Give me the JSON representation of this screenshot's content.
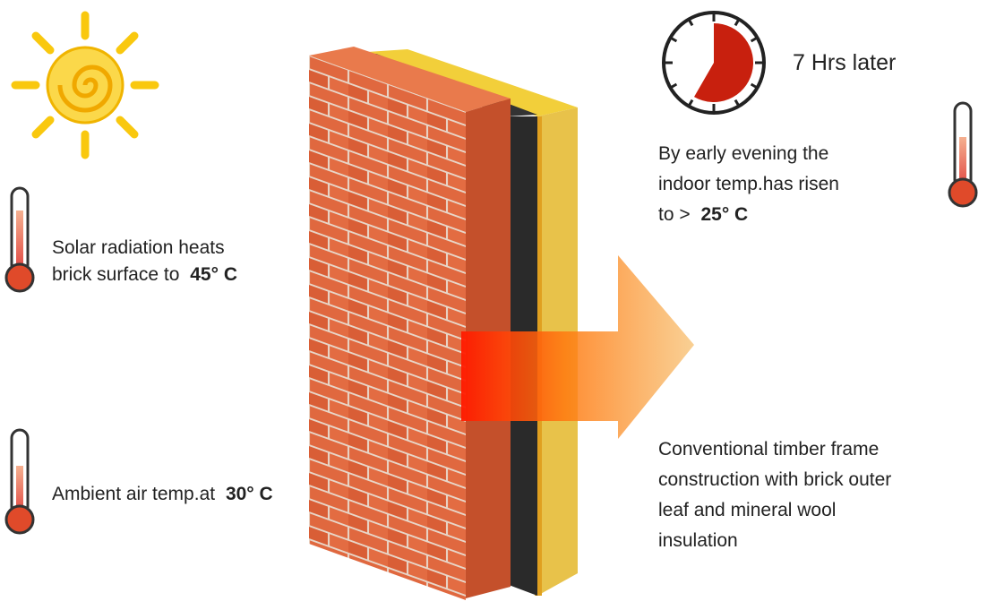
{
  "labels": {
    "solar": {
      "lines": [
        "Solar radiation heats",
        "brick surface to"
      ],
      "emphasis": "45° C"
    },
    "ambient": {
      "lines": [
        "Ambient air temp.at"
      ],
      "emphasis": "30° C"
    },
    "clock": {
      "text": "7 Hrs later"
    },
    "evening": {
      "lines": [
        "By early evening the",
        "indoor temp.has risen",
        "to >"
      ],
      "emphasis": "25° C"
    },
    "construction": {
      "lines": [
        "Conventional timber frame",
        "construction with brick outer",
        "leaf and mineral wool",
        "insulation"
      ]
    }
  }
}
